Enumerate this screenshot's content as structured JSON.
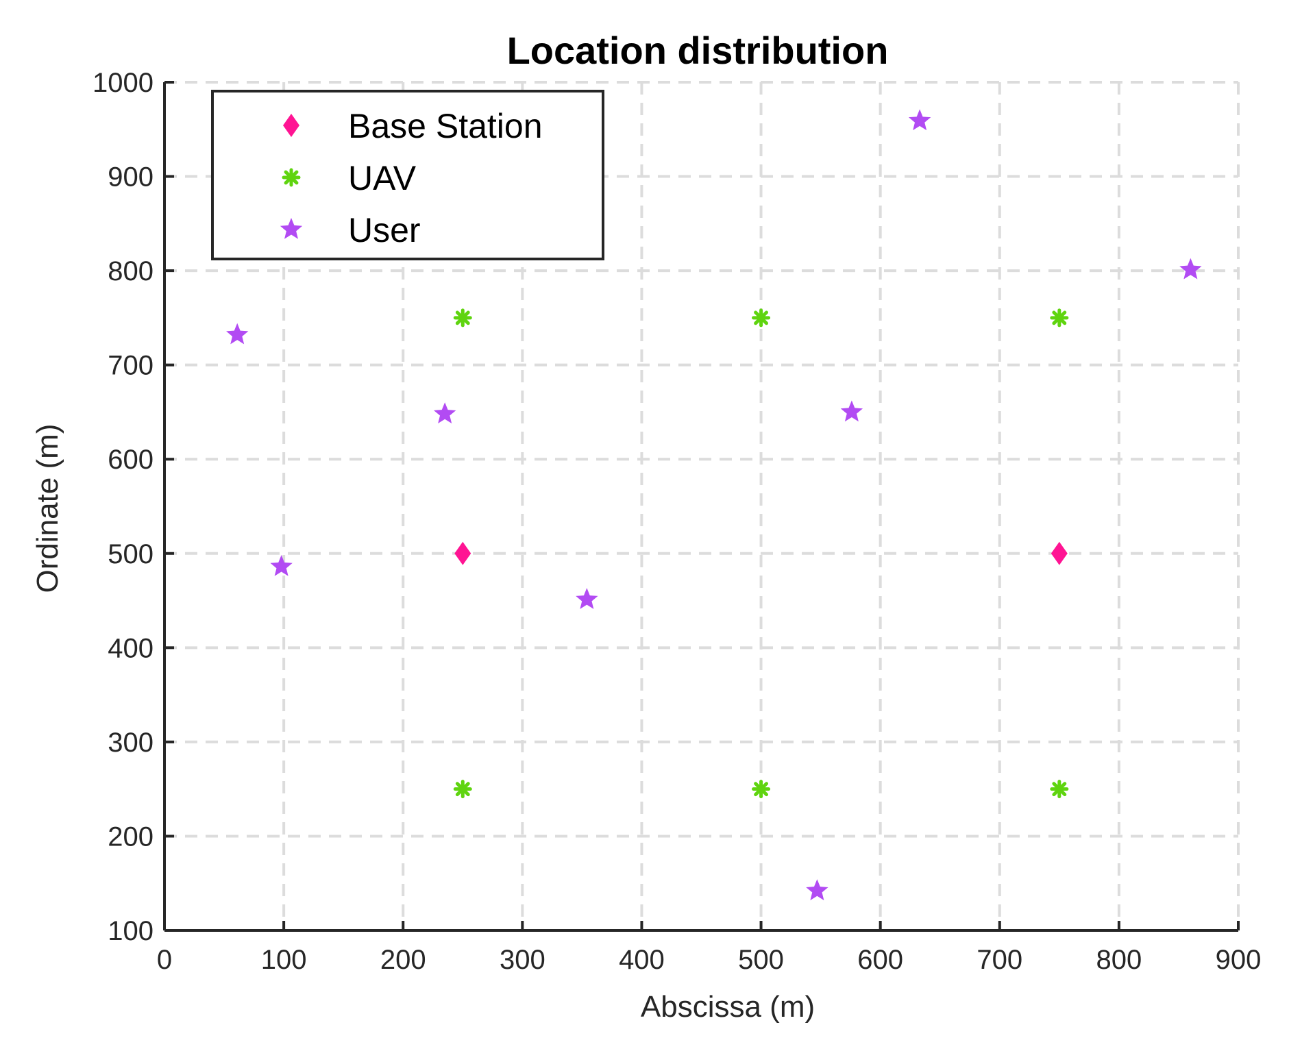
{
  "chart_data": {
    "type": "scatter",
    "title": "Location distribution",
    "xlabel": "Abscissa (m)",
    "ylabel": "Ordinate (m)",
    "xlim": [
      0,
      900
    ],
    "ylim": [
      100,
      1000
    ],
    "xticks": [
      0,
      100,
      200,
      300,
      400,
      500,
      600,
      700,
      800,
      900
    ],
    "yticks": [
      100,
      200,
      300,
      400,
      500,
      600,
      700,
      800,
      900,
      1000
    ],
    "grid": true,
    "legend_position": "top-left",
    "series": [
      {
        "name": "Base Station",
        "marker": "diamond",
        "color": "#ff1493",
        "points": [
          [
            250,
            500
          ],
          [
            750,
            500
          ]
        ]
      },
      {
        "name": "UAV",
        "marker": "asterisk",
        "color": "#5fd40f",
        "points": [
          [
            250,
            750
          ],
          [
            500,
            750
          ],
          [
            750,
            750
          ],
          [
            250,
            250
          ],
          [
            500,
            250
          ],
          [
            750,
            250
          ]
        ]
      },
      {
        "name": "User",
        "marker": "pentagram",
        "color": "#b24bf3",
        "points": [
          [
            61,
            732
          ],
          [
            98,
            486
          ],
          [
            235,
            648
          ],
          [
            354,
            451
          ],
          [
            547,
            142
          ],
          [
            576,
            650
          ],
          [
            633,
            959
          ],
          [
            860,
            801
          ]
        ]
      }
    ]
  }
}
